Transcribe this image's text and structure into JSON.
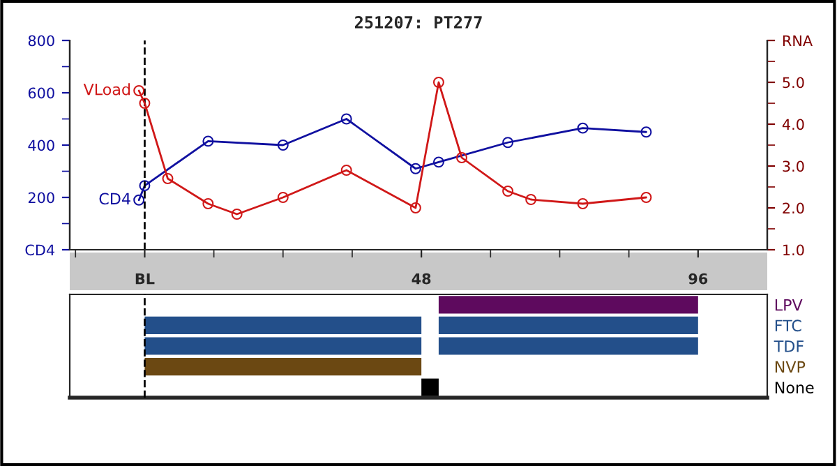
{
  "chart_data": [
    {
      "type": "line",
      "title": "251207: PT277",
      "marker": "circle",
      "grid": false,
      "legend": false,
      "xlim": [
        -13,
        108
      ],
      "xticks": [
        {
          "value": -12,
          "label": null
        },
        {
          "value": 0,
          "label": "BL"
        },
        {
          "value": 12,
          "label": null
        },
        {
          "value": 24,
          "label": null
        },
        {
          "value": 36,
          "label": null
        },
        48,
        {
          "value": 60,
          "label": null
        },
        {
          "value": 72,
          "label": null
        },
        {
          "value": 84,
          "label": null
        },
        96
      ],
      "ylim": [
        0,
        800
      ],
      "yticks": [
        {
          "value": 0,
          "label": "CD4"
        },
        {
          "value": 100,
          "label": null
        },
        200,
        {
          "value": 300,
          "label": null
        },
        400,
        {
          "value": 500,
          "label": null
        },
        600,
        {
          "value": 700,
          "label": null
        },
        800
      ],
      "y2lim": [
        1,
        6
      ],
      "y2ticks": [
        {
          "value": 1,
          "label": "1.0"
        },
        {
          "value": 1.5,
          "label": null
        },
        {
          "value": 2,
          "label": "2.0"
        },
        {
          "value": 2.5,
          "label": null
        },
        {
          "value": 3,
          "label": "3.0"
        },
        {
          "value": 3.5,
          "label": null
        },
        {
          "value": 4,
          "label": "4.0"
        },
        {
          "value": 4.5,
          "label": null
        },
        {
          "value": 5,
          "label": "5.0"
        },
        {
          "value": 5.5,
          "label": null
        },
        {
          "value": 6,
          "label": "RNA"
        }
      ],
      "ref_lines": [
        {
          "axis": "x",
          "value": 0,
          "line_style": "dashed",
          "color": "#000000"
        }
      ],
      "series": [
        {
          "name": "CD4",
          "color": "#1010a0",
          "x": [
            -1,
            0,
            11,
            24,
            35,
            47,
            51,
            63,
            76,
            87
          ],
          "values": [
            190,
            245,
            415,
            400,
            500,
            310,
            335,
            410,
            465,
            450
          ]
        },
        {
          "name": "VLoad",
          "color": "#d01818",
          "axis": "y2",
          "x": [
            -1,
            0,
            4,
            11,
            16,
            24,
            35,
            47,
            51,
            55,
            63,
            67,
            76,
            87
          ],
          "values": [
            4.8,
            4.5,
            2.7,
            2.1,
            1.85,
            2.25,
            2.9,
            2.0,
            5.0,
            3.2,
            2.4,
            2.2,
            2.1,
            2.25
          ]
        }
      ]
    },
    {
      "type": "bar",
      "orientation": "horizontal",
      "tick_labels": "y",
      "grid": false,
      "xlim": [
        -13,
        108
      ],
      "categories": [
        "LPV",
        "FTC",
        "TDF",
        "NVP",
        "None"
      ],
      "ref_lines": [
        {
          "axis": "x",
          "value": 0,
          "line_style": "dashed",
          "color": "#000000"
        }
      ],
      "series": [
        {
          "base": [
            null,
            0,
            0,
            0,
            48
          ],
          "values": [
            null,
            48,
            48,
            48,
            3
          ],
          "colors": [
            null,
            "#234f8a",
            "#234f8a",
            "#6b4812",
            "#000000"
          ]
        },
        {
          "base": [
            51,
            51,
            51,
            null,
            null
          ],
          "values": [
            45,
            45,
            45,
            null,
            null
          ],
          "colors": [
            "#5e0a5e",
            "#234f8a",
            "#234f8a",
            null,
            null
          ]
        }
      ]
    }
  ]
}
